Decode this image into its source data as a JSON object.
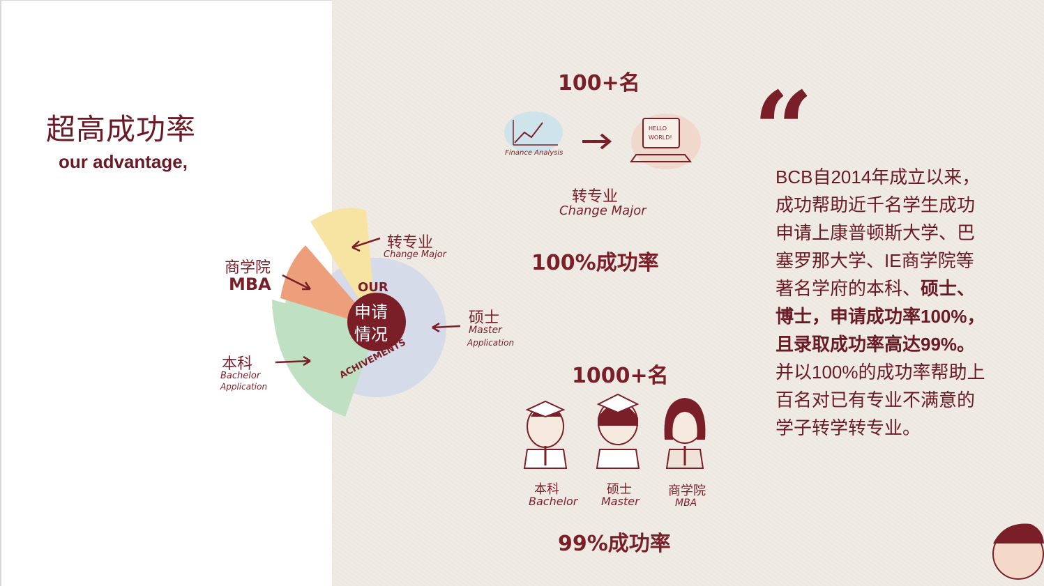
{
  "header": {
    "title": "超高成功率",
    "subtitle": "our advantage,"
  },
  "achievements_chart": {
    "center_top": "OUR",
    "center_text_1": "申请",
    "center_text_2": "情况",
    "center_bottom": "ACHIVEMENTS",
    "labels": {
      "change_cn": "转专业",
      "change_en": "Change Major",
      "mba_cn": "商学院",
      "mba_en": "MBA",
      "master_cn": "硕士",
      "master_en_1": "Master",
      "master_en_2": "Application",
      "bachelor_cn": "本科",
      "bachelor_en_1": "Bachelor",
      "bachelor_en_2": "Application"
    },
    "colors": {
      "change": "#f7e3a2",
      "mba": "#ec9f7a",
      "bachelor": "#bfe0c2",
      "master": "#d5dbe8",
      "center": "#7a1e28"
    }
  },
  "change_major_block": {
    "count": "100+名",
    "finance_label": "Finance Analysis",
    "screen_text_1": "HELLO",
    "screen_text_2": "WORLD!",
    "label_cn": "转专业",
    "label_en": "Change Major",
    "rate": "100%成功率"
  },
  "degree_block": {
    "count": "1000+名",
    "bachelor_cn": "本科",
    "bachelor_en": "Bachelor",
    "master_cn": "硕士",
    "master_en": "Master",
    "mba_cn": "商学院",
    "mba_en": "MBA",
    "rate": "99%成功率"
  },
  "quote": {
    "mark": "“",
    "line1": "BCB自2014年成立以来，",
    "line2": "成功帮助近千名学生成功",
    "line3": "申请上康普顿斯大学、巴",
    "line4": "塞罗那大学、IE商学院等",
    "line5_normal": "著名学府的本科、",
    "line5_bold": "硕士、",
    "line6": "博士，申请成功率100%，",
    "line7": "且录取成功率高达99%。",
    "line8": "并以100%的成功率帮助上",
    "line9": "百名对已有专业不满意的",
    "line10": "学子转学转专业。"
  }
}
